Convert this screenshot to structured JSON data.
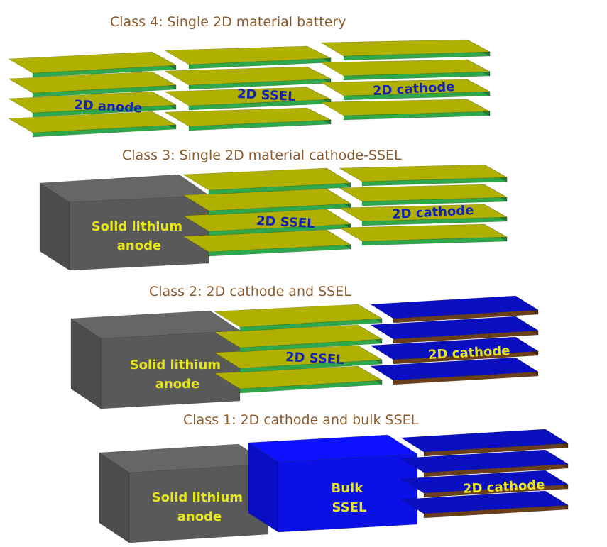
{
  "class4": {
    "title": "Class 4: Single 2D material battery",
    "anode_label": "2D anode",
    "ssel_label": "2D SSEL",
    "cathode_label": "2D cathode"
  },
  "class3": {
    "title": "Class 3: Single 2D material cathode-SSEL",
    "anode_label": "Solid lithium anode",
    "ssel_label": "2D SSEL",
    "cathode_label": "2D cathode"
  },
  "class2": {
    "title": "Class 2: 2D cathode and SSEL",
    "anode_label": "Solid lithium anode",
    "ssel_label": "2D SSEL",
    "cathode_label": "2D cathode"
  },
  "class1": {
    "title": "Class 1: 2D cathode and bulk SSEL",
    "anode_label": "Solid lithium anode",
    "ssel_label": "Bulk SSEL",
    "cathode_label": "2D cathode"
  },
  "colors": {
    "sheet_top_green": "#b0b000",
    "sheet_edge_green": "#2ea84a",
    "sheet_top_blue": "#0a10c0",
    "sheet_edge_brown": "#6b3f1c",
    "bulk_lithium": "#595959",
    "bulk_ssel": "#0a10e6",
    "title_text": "#8a5a2c"
  }
}
